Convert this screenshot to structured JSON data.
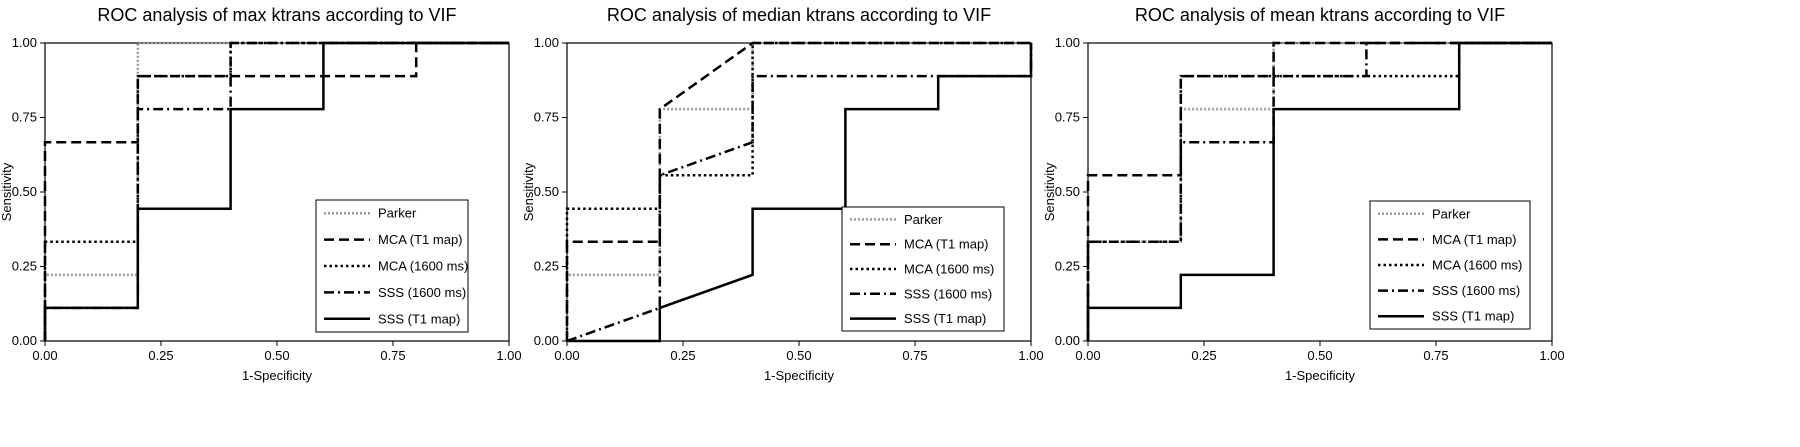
{
  "panels": [
    {
      "title": "ROC analysis of max ktrans according to VIF",
      "xlabel": "1-Specificity",
      "ylabel": "Sensitivity"
    },
    {
      "title": "ROC analysis of median ktrans according to VIF",
      "xlabel": "1-Specificity",
      "ylabel": "Sensitivity"
    },
    {
      "title": "ROC analysis of mean ktrans according to VIF",
      "xlabel": "1-Specificity",
      "ylabel": "Sensitivity"
    }
  ],
  "chart_data": [
    {
      "type": "line",
      "title": "ROC analysis of max ktrans according to VIF",
      "xlabel": "1-Specificity",
      "ylabel": "Sensitivity",
      "xlim": [
        0,
        1
      ],
      "ylim": [
        0,
        1
      ],
      "xticks": [
        "0.00",
        "0.25",
        "0.50",
        "0.75",
        "1.00"
      ],
      "yticks": [
        "0.00",
        "0.25",
        "0.50",
        "0.75",
        "1.00"
      ],
      "legend_position": "bottom-right",
      "series": [
        {
          "name": "Parker",
          "style": "dotted-gray",
          "points": [
            [
              0,
              0
            ],
            [
              0,
              0.222
            ],
            [
              0.2,
              0.222
            ],
            [
              0.2,
              1
            ],
            [
              1,
              1
            ]
          ]
        },
        {
          "name": "MCA (T1 map)",
          "style": "dashed",
          "points": [
            [
              0,
              0
            ],
            [
              0,
              0.667
            ],
            [
              0.2,
              0.667
            ],
            [
              0.2,
              0.889
            ],
            [
              0.8,
              0.889
            ],
            [
              0.8,
              1
            ],
            [
              1,
              1
            ]
          ]
        },
        {
          "name": "MCA (1600 ms)",
          "style": "dotted",
          "points": [
            [
              0,
              0
            ],
            [
              0,
              0.333
            ],
            [
              0.2,
              0.333
            ],
            [
              0.2,
              0.889
            ],
            [
              0.4,
              0.889
            ],
            [
              0.4,
              1
            ],
            [
              1,
              1
            ]
          ]
        },
        {
          "name": "SSS (1600 ms)",
          "style": "dashdot",
          "points": [
            [
              0,
              0
            ],
            [
              0,
              0.111
            ],
            [
              0.2,
              0.111
            ],
            [
              0.2,
              0.778
            ],
            [
              0.4,
              0.778
            ],
            [
              0.4,
              1
            ],
            [
              1,
              1
            ]
          ]
        },
        {
          "name": "SSS (T1 map)",
          "style": "solid",
          "points": [
            [
              0,
              0
            ],
            [
              0,
              0.111
            ],
            [
              0.2,
              0.111
            ],
            [
              0.2,
              0.444
            ],
            [
              0.4,
              0.444
            ],
            [
              0.4,
              0.778
            ],
            [
              0.6,
              0.778
            ],
            [
              0.6,
              1
            ],
            [
              1,
              1
            ]
          ]
        }
      ]
    },
    {
      "type": "line",
      "title": "ROC analysis of median ktrans according to VIF",
      "xlabel": "1-Specificity",
      "ylabel": "Sensitivity",
      "xlim": [
        0,
        1
      ],
      "ylim": [
        0,
        1
      ],
      "xticks": [
        "0.00",
        "0.25",
        "0.50",
        "0.75",
        "1.00"
      ],
      "yticks": [
        "0.00",
        "0.25",
        "0.50",
        "0.75",
        "1.00"
      ],
      "legend_position": "bottom-right",
      "series": [
        {
          "name": "Parker",
          "style": "dotted-gray",
          "points": [
            [
              0,
              0
            ],
            [
              0,
              0.222
            ],
            [
              0.2,
              0.222
            ],
            [
              0.2,
              0.778
            ],
            [
              0.4,
              0.778
            ],
            [
              0.4,
              1
            ],
            [
              1,
              1
            ]
          ]
        },
        {
          "name": "MCA (T1 map)",
          "style": "dashed",
          "points": [
            [
              0,
              0
            ],
            [
              0,
              0.333
            ],
            [
              0.2,
              0.333
            ],
            [
              0.2,
              0.778
            ],
            [
              0.4,
              1
            ],
            [
              1,
              1
            ]
          ]
        },
        {
          "name": "MCA (1600 ms)",
          "style": "dotted",
          "points": [
            [
              0,
              0
            ],
            [
              0,
              0.444
            ],
            [
              0.2,
              0.444
            ],
            [
              0.2,
              0.556
            ],
            [
              0.4,
              0.556
            ],
            [
              0.4,
              1
            ],
            [
              1,
              1
            ]
          ]
        },
        {
          "name": "SSS (1600 ms)",
          "style": "dashdot",
          "points": [
            [
              0,
              0
            ],
            [
              0.2,
              0.111
            ],
            [
              0.2,
              0.556
            ],
            [
              0.4,
              0.667
            ],
            [
              0.4,
              0.889
            ],
            [
              1,
              0.889
            ],
            [
              1,
              1
            ]
          ]
        },
        {
          "name": "SSS (T1 map)",
          "style": "solid",
          "points": [
            [
              0,
              0
            ],
            [
              0.2,
              0
            ],
            [
              0.2,
              0.111
            ],
            [
              0.4,
              0.222
            ],
            [
              0.4,
              0.444
            ],
            [
              0.6,
              0.444
            ],
            [
              0.6,
              0.778
            ],
            [
              0.8,
              0.778
            ],
            [
              0.8,
              0.889
            ],
            [
              1,
              0.889
            ],
            [
              1,
              1
            ]
          ]
        }
      ]
    },
    {
      "type": "line",
      "title": "ROC analysis of mean ktrans according to VIF",
      "xlabel": "1-Specificity",
      "ylabel": "Sensitivity",
      "xlim": [
        0,
        1
      ],
      "ylim": [
        0,
        1
      ],
      "xticks": [
        "0.00",
        "0.25",
        "0.50",
        "0.75",
        "1.00"
      ],
      "yticks": [
        "0.00",
        "0.25",
        "0.50",
        "0.75",
        "1.00"
      ],
      "legend_position": "bottom-right",
      "series": [
        {
          "name": "Parker",
          "style": "dotted-gray",
          "points": [
            [
              0,
              0
            ],
            [
              0,
              0.333
            ],
            [
              0.2,
              0.333
            ],
            [
              0.2,
              0.778
            ],
            [
              0.4,
              0.778
            ],
            [
              0.4,
              1
            ],
            [
              1,
              1
            ]
          ]
        },
        {
          "name": "MCA (T1 map)",
          "style": "dashed",
          "points": [
            [
              0,
              0
            ],
            [
              0,
              0.556
            ],
            [
              0.2,
              0.556
            ],
            [
              0.2,
              0.889
            ],
            [
              0.4,
              0.889
            ],
            [
              0.4,
              1
            ],
            [
              1,
              1
            ]
          ]
        },
        {
          "name": "MCA (1600 ms)",
          "style": "dotted",
          "points": [
            [
              0,
              0
            ],
            [
              0,
              0.333
            ],
            [
              0.2,
              0.333
            ],
            [
              0.2,
              0.889
            ],
            [
              0.8,
              0.889
            ],
            [
              0.8,
              1
            ],
            [
              1,
              1
            ]
          ]
        },
        {
          "name": "SSS (1600 ms)",
          "style": "dashdot",
          "points": [
            [
              0,
              0
            ],
            [
              0,
              0.333
            ],
            [
              0.2,
              0.333
            ],
            [
              0.2,
              0.667
            ],
            [
              0.4,
              0.667
            ],
            [
              0.4,
              0.889
            ],
            [
              0.6,
              0.889
            ],
            [
              0.6,
              1
            ],
            [
              1,
              1
            ]
          ]
        },
        {
          "name": "SSS (T1 map)",
          "style": "solid",
          "points": [
            [
              0,
              0
            ],
            [
              0,
              0.111
            ],
            [
              0.2,
              0.111
            ],
            [
              0.2,
              0.222
            ],
            [
              0.4,
              0.222
            ],
            [
              0.4,
              0.778
            ],
            [
              0.8,
              0.778
            ],
            [
              0.8,
              1
            ],
            [
              1,
              1
            ]
          ]
        }
      ]
    }
  ],
  "line_styles": {
    "dotted-gray": {
      "color": "#9a9a9a",
      "dash": "2 2",
      "width": 2.5
    },
    "dashed": {
      "color": "#000000",
      "dash": "10 5",
      "width": 2.5
    },
    "dotted": {
      "color": "#000000",
      "dash": "2.5 3",
      "width": 2.5
    },
    "dashdot": {
      "color": "#000000",
      "dash": "10 4 2 4",
      "width": 2.5
    },
    "solid": {
      "color": "#000000",
      "dash": "",
      "width": 2.5
    }
  }
}
